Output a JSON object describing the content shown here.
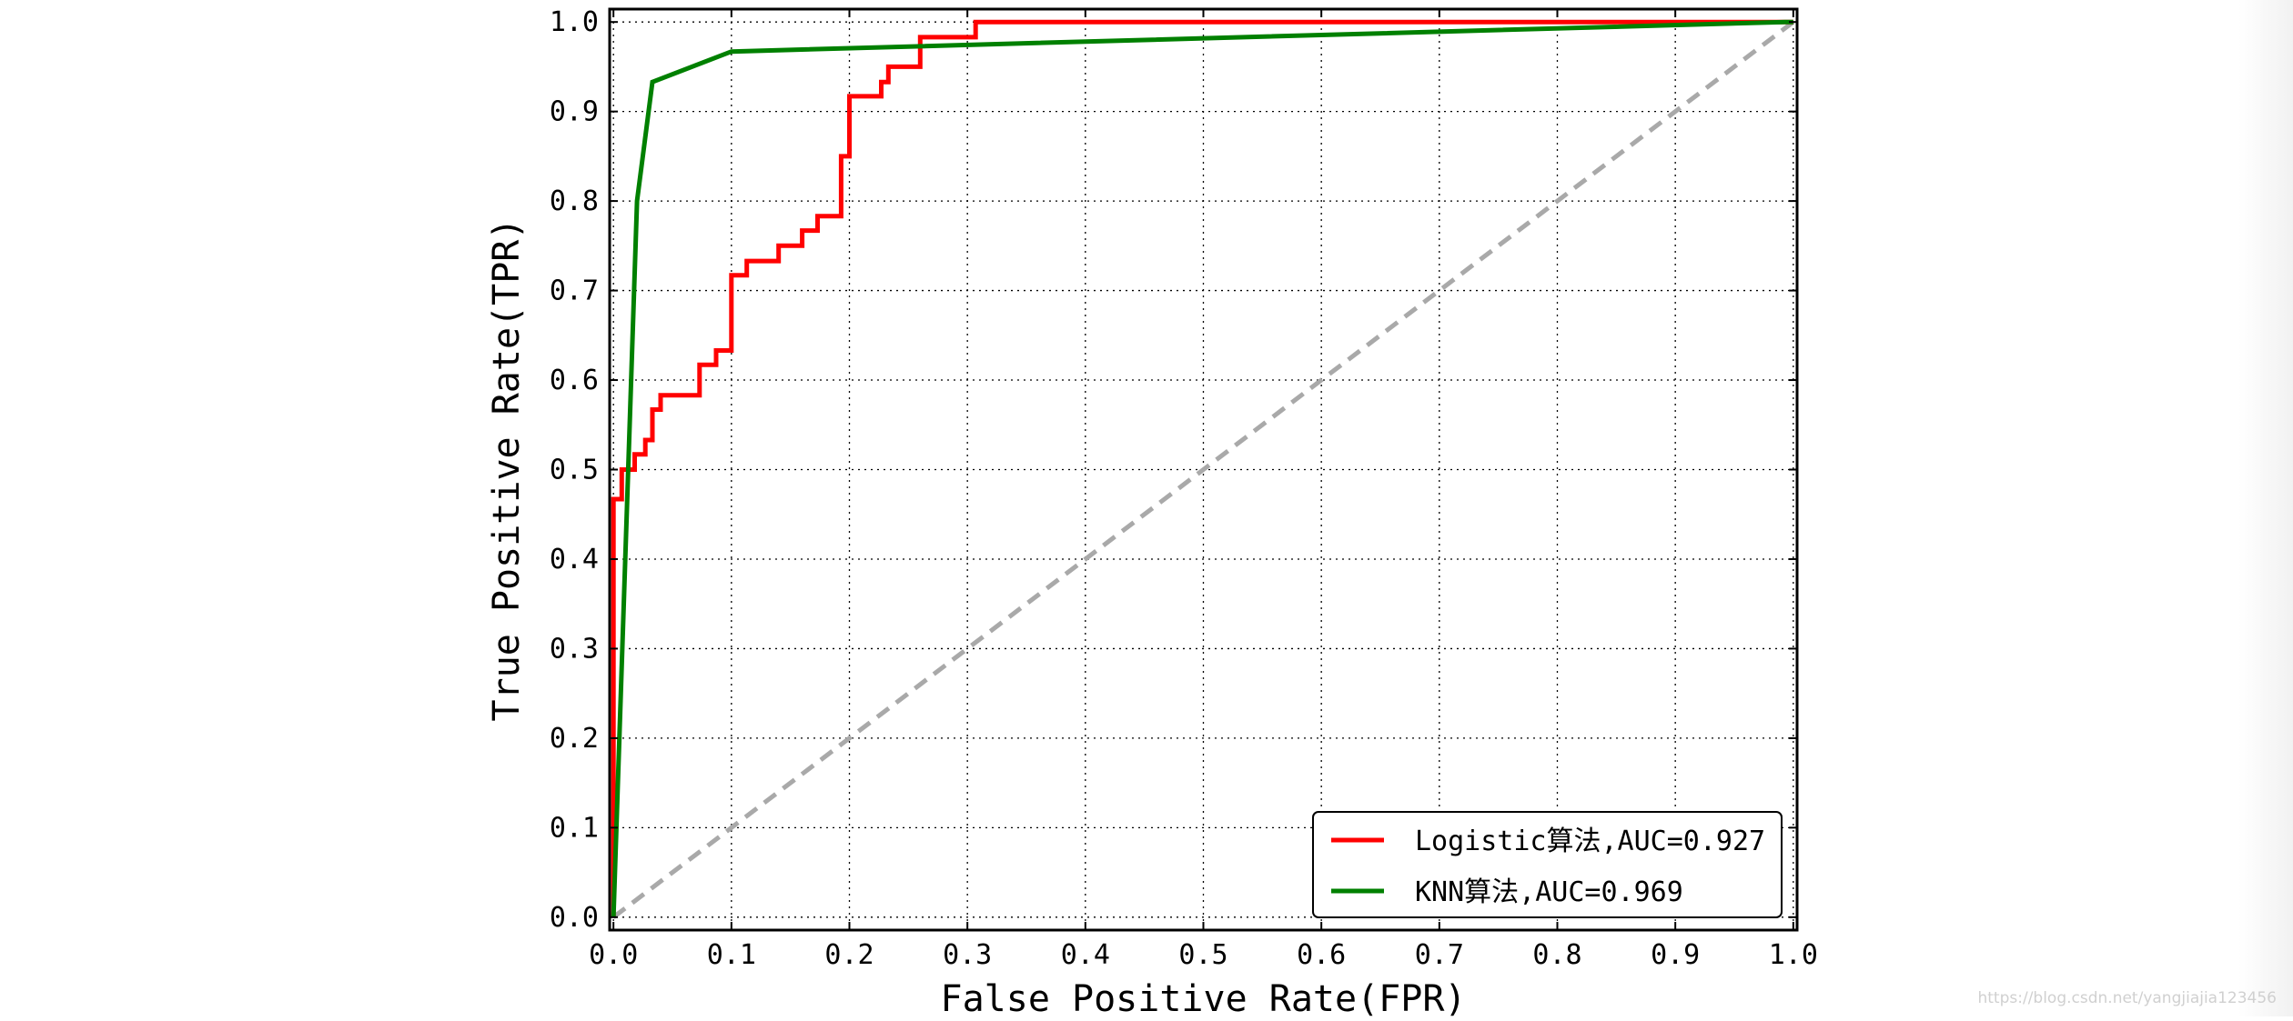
{
  "chart_data": {
    "type": "line",
    "title": "",
    "xlabel": "False Positive Rate(FPR)",
    "ylabel": "True Positive Rate(TPR)",
    "xlim": [
      0.0,
      1.0
    ],
    "ylim": [
      0.0,
      1.0
    ],
    "grid": true,
    "legend_position": "lower-right",
    "xticks": [
      "0.0",
      "0.1",
      "0.2",
      "0.3",
      "0.4",
      "0.5",
      "0.6",
      "0.7",
      "0.8",
      "0.9",
      "1.0"
    ],
    "yticks": [
      "0.0",
      "0.1",
      "0.2",
      "0.3",
      "0.4",
      "0.5",
      "0.6",
      "0.7",
      "0.8",
      "0.9",
      "1.0"
    ],
    "series": [
      {
        "name": "Logistic算法,AUC=0.927",
        "color": "#ff0000",
        "x": [
          0.0,
          0.0,
          0.0,
          0.0,
          0.0,
          0.0,
          0.007,
          0.007,
          0.018,
          0.018,
          0.027,
          0.027,
          0.033,
          0.033,
          0.04,
          0.04,
          0.047,
          0.047,
          0.073,
          0.073,
          0.087,
          0.087,
          0.1,
          0.1,
          0.113,
          0.113,
          0.14,
          0.14,
          0.16,
          0.16,
          0.173,
          0.173,
          0.193,
          0.193,
          0.2,
          0.2,
          0.227,
          0.227,
          0.233,
          0.233,
          0.26,
          0.26,
          0.307,
          0.307,
          1.0
        ],
        "y": [
          0.0,
          0.167,
          0.25,
          0.35,
          0.4,
          0.467,
          0.467,
          0.5,
          0.5,
          0.517,
          0.517,
          0.533,
          0.533,
          0.567,
          0.567,
          0.583,
          0.583,
          0.583,
          0.583,
          0.617,
          0.617,
          0.633,
          0.633,
          0.717,
          0.717,
          0.733,
          0.733,
          0.75,
          0.75,
          0.767,
          0.767,
          0.783,
          0.783,
          0.85,
          0.85,
          0.917,
          0.917,
          0.933,
          0.933,
          0.95,
          0.95,
          0.983,
          0.983,
          1.0,
          1.0
        ]
      },
      {
        "name": "KNN算法,AUC=0.969",
        "color": "#008000",
        "x": [
          0.0,
          0.02,
          0.033,
          0.1,
          0.993,
          1.0
        ],
        "y": [
          0.0,
          0.8,
          0.933,
          0.967,
          1.0,
          1.0
        ]
      },
      {
        "name": "",
        "color": "#a9a9a9",
        "dashed": true,
        "x": [
          0.0,
          1.0
        ],
        "y": [
          0.0,
          1.0
        ]
      }
    ]
  },
  "watermark": "https://blog.csdn.net/yangjiajia123456"
}
